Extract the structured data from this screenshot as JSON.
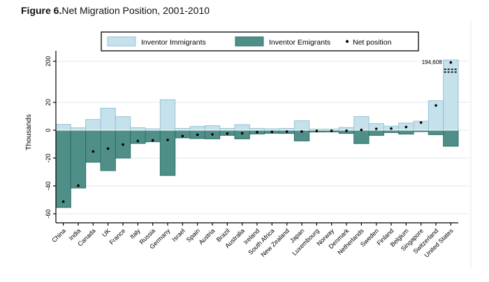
{
  "page": {
    "title_prefix": "Figure 6.",
    "title_rest": "Net Migration Position, 2001-2010"
  },
  "chart_data": {
    "type": "bar",
    "title": "Figure 6. Net Migration Position, 2001-2010",
    "ylabel": "Thousands",
    "units": "thousands of inventors",
    "grid": true,
    "legend_position": "top",
    "y_ticks": [
      200,
      20,
      0,
      -20,
      -40,
      -60
    ],
    "ylim": [
      -60,
      207
    ],
    "axis_break": {
      "between": [
        20,
        200
      ],
      "at_category": "United States"
    },
    "legend": [
      {
        "label": "Inventor Immigrants",
        "marker": "swatch",
        "color": "#c5e1eb"
      },
      {
        "label": "Inventor Emigrants",
        "marker": "swatch",
        "color": "#4f8f88"
      },
      {
        "label": "Net position",
        "marker": "dot",
        "color": "#000000"
      }
    ],
    "categories": [
      "China",
      "India",
      "Canada",
      "UK",
      "France",
      "Italy",
      "Russia",
      "Germany",
      "Israel",
      "Spain",
      "Austria",
      "Brazil",
      "Australia",
      "Ireland",
      "South Africa",
      "New Zealand",
      "Japan",
      "Luxembourg",
      "Norway",
      "Denmark",
      "Netherlands",
      "Sweden",
      "Finland",
      "Belgium",
      "Singapore",
      "Switzerland",
      "United States"
    ],
    "series": [
      {
        "name": "Inventor Immigrants",
        "values": [
          4.2,
          1.7,
          7.7,
          15.8,
          9.7,
          1.8,
          1.0,
          25.5,
          1.3,
          2.7,
          3.2,
          1.3,
          4.0,
          1.3,
          1.0,
          1.3,
          6.8,
          0.8,
          0.8,
          1.9,
          9.8,
          4.7,
          2.9,
          5.1,
          6.5,
          21.0,
          206.1
        ]
      },
      {
        "name": "Inventor Emigrants",
        "values": [
          -55.5,
          -41.5,
          -23.0,
          -29.0,
          -20.0,
          -9.5,
          -8.3,
          -32.5,
          -5.5,
          -6.0,
          -6.2,
          -3.7,
          -6.2,
          -2.7,
          -2.2,
          -2.3,
          -7.7,
          -1.3,
          -1.25,
          -2.3,
          -9.6,
          -3.7,
          -1.7,
          -2.8,
          -1.0,
          -3.2,
          -11.5
        ]
      },
      {
        "name": "Net position",
        "values": [
          -51.3,
          -39.8,
          -15.3,
          -13.2,
          -10.3,
          -7.7,
          -7.3,
          -7.0,
          -4.2,
          -3.3,
          -3.0,
          -2.4,
          -2.2,
          -1.4,
          -1.2,
          -1.0,
          -0.9,
          -0.5,
          -0.45,
          -0.4,
          0.2,
          1.0,
          1.2,
          2.3,
          5.5,
          17.8,
          194.608
        ]
      }
    ],
    "annotations": [
      {
        "text": "194,608",
        "category": "United States",
        "refers_to": "Net position"
      }
    ]
  },
  "colors": {
    "immigrant_fill": "#c5e1eb",
    "immigrant_stroke": "#96c2d4",
    "emigrant_fill": "#4f8f88",
    "emigrant_stroke": "#2d6f68",
    "grid": "#dce9f2",
    "axis": "#000000",
    "dot": "#000000",
    "zero_line": "#ffffff",
    "frame_edge": "#e2ebf2"
  }
}
